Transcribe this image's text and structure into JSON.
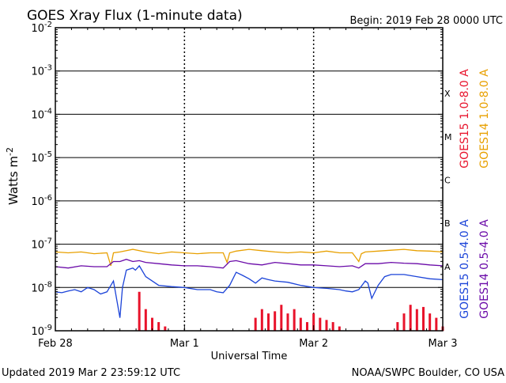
{
  "header": {
    "title": "GOES Xray Flux (1-minute data)",
    "begin_label": "Begin:  2019 Feb 28 0000 UTC"
  },
  "footer": {
    "updated": "Updated 2019 Mar  2 23:59:12 UTC",
    "credit": "NOAA/SWPC Boulder, CO USA"
  },
  "chart_data": {
    "type": "line",
    "title": "GOES Xray Flux (1-minute data)",
    "xlabel": "Universal Time",
    "ylabel": "Watts m",
    "ylabel_superscript": "-2",
    "yscale": "log",
    "ylim": [
      1e-09,
      0.01
    ],
    "grid": true,
    "x_ticks": [
      {
        "day": 0,
        "label": "Feb 28"
      },
      {
        "day": 1,
        "label": "Mar 1"
      },
      {
        "day": 2,
        "label": "Mar 2"
      },
      {
        "day": 3,
        "label": "Mar 3"
      }
    ],
    "y_ticks": [
      {
        "exp": -2,
        "base": "10",
        "sup": "-2"
      },
      {
        "exp": -3,
        "base": "10",
        "sup": "-3"
      },
      {
        "exp": -4,
        "base": "10",
        "sup": "-4"
      },
      {
        "exp": -5,
        "base": "10",
        "sup": "-5"
      },
      {
        "exp": -6,
        "base": "10",
        "sup": "-6"
      },
      {
        "exp": -7,
        "base": "10",
        "sup": "-7"
      },
      {
        "exp": -8,
        "base": "10",
        "sup": "-8"
      },
      {
        "exp": -9,
        "base": "10",
        "sup": "-9"
      }
    ],
    "flare_classes": [
      {
        "label": "X",
        "exp": -3.5
      },
      {
        "label": "M",
        "exp": -4.5
      },
      {
        "label": "C",
        "exp": -5.5
      },
      {
        "label": "B",
        "exp": -6.5
      },
      {
        "label": "A",
        "exp": -7.5
      }
    ],
    "legend": [
      {
        "text": "GOES15 1.0-8.0 A",
        "color": "#e8132b"
      },
      {
        "text": "GOES14 1.0-8.0 A",
        "color": "#e8a000"
      },
      {
        "text": "GOES15 0.5-4.0 A",
        "color": "#1b43d8"
      },
      {
        "text": "GOES14 0.5-4.0 A",
        "color": "#6a0aa8"
      }
    ],
    "series": [
      {
        "name": "GOES14 1.0-8.0 A",
        "color": "#e8a000",
        "x": [
          0,
          0.1,
          0.2,
          0.3,
          0.4,
          0.43,
          0.45,
          0.5,
          0.6,
          0.7,
          0.75,
          0.8,
          0.9,
          1.0,
          1.1,
          1.2,
          1.3,
          1.33,
          1.35,
          1.4,
          1.5,
          1.6,
          1.7,
          1.8,
          1.9,
          2.0,
          2.1,
          2.2,
          2.3,
          2.35,
          2.37,
          2.4,
          2.5,
          2.6,
          2.7,
          2.8,
          2.9,
          3.0
        ],
        "log": [
          -7.18,
          -7.2,
          -7.18,
          -7.22,
          -7.2,
          -7.5,
          -7.2,
          -7.18,
          -7.12,
          -7.18,
          -7.2,
          -7.22,
          -7.18,
          -7.2,
          -7.22,
          -7.2,
          -7.2,
          -7.42,
          -7.2,
          -7.16,
          -7.12,
          -7.15,
          -7.18,
          -7.2,
          -7.18,
          -7.2,
          -7.16,
          -7.2,
          -7.2,
          -7.4,
          -7.22,
          -7.18,
          -7.16,
          -7.14,
          -7.12,
          -7.15,
          -7.16,
          -7.18
        ]
      },
      {
        "name": "GOES14 0.5-4.0 A",
        "color": "#6a0aa8",
        "x": [
          0,
          0.1,
          0.2,
          0.3,
          0.4,
          0.45,
          0.5,
          0.55,
          0.6,
          0.65,
          0.7,
          0.8,
          0.9,
          1.0,
          1.1,
          1.2,
          1.3,
          1.35,
          1.4,
          1.5,
          1.6,
          1.7,
          1.8,
          1.9,
          2.0,
          2.1,
          2.2,
          2.3,
          2.35,
          2.4,
          2.5,
          2.6,
          2.7,
          2.8,
          2.9,
          3.0
        ],
        "log": [
          -7.52,
          -7.55,
          -7.5,
          -7.52,
          -7.52,
          -7.4,
          -7.4,
          -7.35,
          -7.4,
          -7.38,
          -7.42,
          -7.45,
          -7.48,
          -7.5,
          -7.5,
          -7.52,
          -7.55,
          -7.4,
          -7.38,
          -7.45,
          -7.48,
          -7.42,
          -7.45,
          -7.48,
          -7.48,
          -7.5,
          -7.52,
          -7.5,
          -7.55,
          -7.45,
          -7.45,
          -7.42,
          -7.44,
          -7.45,
          -7.48,
          -7.5
        ]
      },
      {
        "name": "GOES15 0.5-4.0 A",
        "color": "#1b43d8",
        "x": [
          0,
          0.05,
          0.1,
          0.15,
          0.2,
          0.25,
          0.3,
          0.35,
          0.4,
          0.45,
          0.5,
          0.52,
          0.55,
          0.6,
          0.62,
          0.65,
          0.7,
          0.75,
          0.8,
          0.9,
          1.0,
          1.1,
          1.2,
          1.25,
          1.3,
          1.35,
          1.4,
          1.45,
          1.5,
          1.55,
          1.6,
          1.65,
          1.7,
          1.8,
          1.9,
          2.0,
          2.1,
          2.2,
          2.25,
          2.3,
          2.35,
          2.4,
          2.42,
          2.45,
          2.5,
          2.55,
          2.6,
          2.7,
          2.8,
          2.9,
          3.0
        ],
        "log": [
          -8.1,
          -8.12,
          -8.08,
          -8.05,
          -8.1,
          -8.0,
          -8.05,
          -8.15,
          -8.1,
          -7.85,
          -8.7,
          -8.0,
          -7.6,
          -7.55,
          -7.6,
          -7.5,
          -7.75,
          -7.85,
          -7.95,
          -7.98,
          -8.0,
          -8.05,
          -8.05,
          -8.1,
          -8.12,
          -7.95,
          -7.65,
          -7.72,
          -7.8,
          -7.9,
          -7.78,
          -7.82,
          -7.85,
          -7.88,
          -7.95,
          -8.0,
          -8.02,
          -8.05,
          -8.08,
          -8.1,
          -8.05,
          -7.85,
          -7.9,
          -8.25,
          -7.95,
          -7.75,
          -7.7,
          -7.7,
          -7.75,
          -7.8,
          -7.82
        ]
      },
      {
        "name": "GOES15 1.0-8.0 A",
        "color": "#e8132b",
        "x": [
          0.02,
          0.05,
          0.1,
          0.15,
          0.2,
          0.25,
          0.3,
          0.35,
          0.4,
          0.45,
          0.5,
          0.55,
          0.6,
          0.65,
          0.7,
          0.75,
          0.8,
          0.85,
          0.9,
          0.95,
          1.0,
          1.1,
          1.2,
          1.3,
          1.4,
          1.5,
          1.55,
          1.6,
          1.65,
          1.7,
          1.75,
          1.8,
          1.85,
          1.9,
          1.95,
          2.0,
          2.05,
          2.1,
          2.15,
          2.2,
          2.25,
          2.3,
          2.35,
          2.4,
          2.5,
          2.6,
          2.65,
          2.7,
          2.75,
          2.8,
          2.85,
          2.9,
          2.95,
          3.0
        ],
        "log": [
          -9.0,
          -9.0,
          -9.0,
          -9.0,
          -9.0,
          -9.0,
          -9.0,
          -9.0,
          -9.0,
          -9.0,
          -9.0,
          -9.0,
          -9.0,
          -8.1,
          -8.5,
          -8.7,
          -8.8,
          -8.9,
          -9.0,
          -9.0,
          -9.0,
          -9.0,
          -9.0,
          -9.0,
          -9.0,
          -9.0,
          -8.7,
          -8.5,
          -8.6,
          -8.55,
          -8.4,
          -8.6,
          -8.5,
          -8.7,
          -8.8,
          -8.6,
          -8.7,
          -8.75,
          -8.8,
          -8.9,
          -9.0,
          -9.0,
          -9.0,
          -9.0,
          -9.0,
          -9.0,
          -8.8,
          -8.6,
          -8.4,
          -8.5,
          -8.45,
          -8.6,
          -8.7,
          -8.9
        ]
      }
    ]
  }
}
